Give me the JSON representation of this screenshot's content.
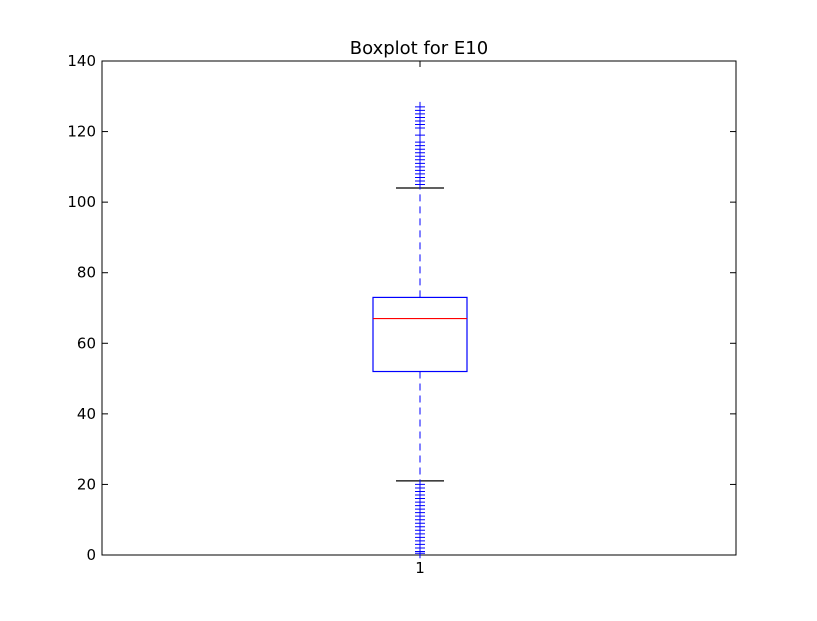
{
  "chart_data": {
    "type": "boxplot",
    "title": "Boxplot for E10",
    "xlabel": "",
    "ylabel": "",
    "ylim": [
      0,
      140
    ],
    "yticks": [
      0,
      20,
      40,
      60,
      80,
      100,
      120,
      140
    ],
    "categories": [
      "1"
    ],
    "grid": false,
    "box": {
      "q1": 52,
      "median": 67,
      "q3": 73,
      "whisker_low": 21,
      "whisker_high": 104
    },
    "fliers_high": [
      105,
      106,
      107,
      108,
      109,
      110,
      111,
      112,
      113,
      114,
      115,
      116,
      117,
      119,
      121,
      122,
      123,
      124,
      125,
      126,
      127
    ],
    "fliers_low": [
      0.5,
      1,
      2,
      3,
      4,
      5,
      6,
      7,
      8,
      9,
      10,
      11,
      12,
      13,
      14,
      15,
      16,
      17,
      18,
      19,
      20
    ],
    "colors": {
      "box": "#0000ff",
      "whisker": "#0000ff",
      "median": "#ff0000",
      "cap": "#000000",
      "flier": "#0000ff",
      "axes": "#000000"
    }
  }
}
